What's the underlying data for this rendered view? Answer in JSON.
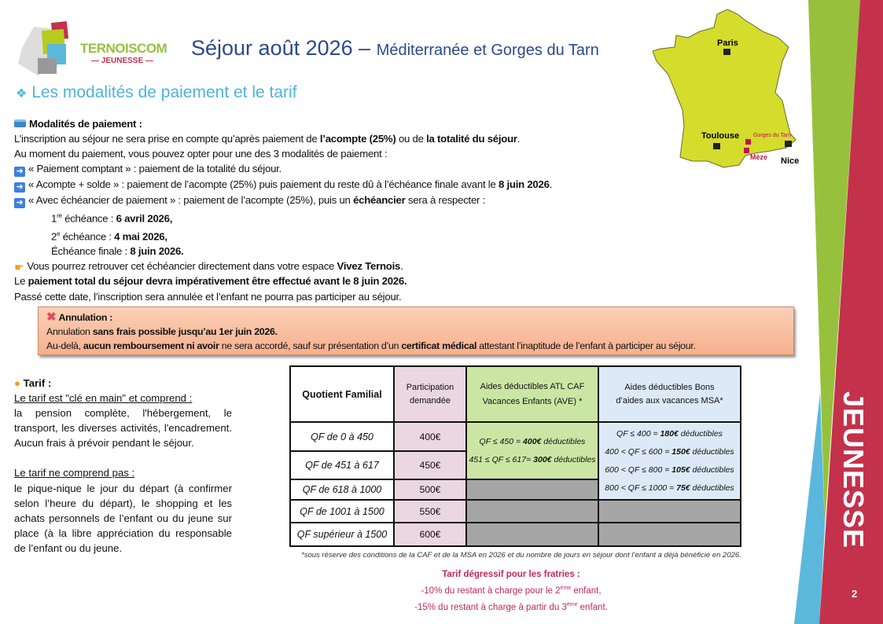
{
  "logo": {
    "brand": "TERNOISCOM",
    "sub": "— JEUNESSE —"
  },
  "header": {
    "title": "Séjour août 2026 –",
    "subtitle": "Méditerranée et Gorges du Tarn"
  },
  "section": {
    "icon": "diamond-bullet-icon",
    "title": "Les modalités de paiement et le tarif"
  },
  "map": {
    "cities": [
      "Paris",
      "Toulouse",
      "Nice"
    ],
    "destinations": [
      "Gorges du Tarn",
      "Mèze"
    ],
    "land_color": "#d4dc2c",
    "destination_color": "#c0124a"
  },
  "payment": {
    "heading": "Modalités de paiement :",
    "lines": [
      {
        "icon": "",
        "indent": false,
        "segs": [
          [
            "L’inscription au séjour ne sera prise en compte qu’après paiement de ",
            0
          ],
          [
            "l’acompte (25%)",
            1
          ],
          [
            " ou de ",
            0
          ],
          [
            "la totalité du séjour",
            1
          ],
          [
            ".",
            0
          ]
        ]
      },
      {
        "icon": "",
        "indent": false,
        "segs": [
          [
            "Au moment du paiement, vous pouvez opter pour une des 3 modalités de paiement :",
            0
          ]
        ]
      },
      {
        "icon": "arrow",
        "indent": false,
        "segs": [
          [
            "« Paiement comptant » : paiement de la totalité du séjour.",
            0
          ]
        ]
      },
      {
        "icon": "arrow",
        "indent": false,
        "segs": [
          [
            "« Acompte + solde » : paiement de l’acompte (25%) puis paiement du reste dû à l’échéance finale avant le ",
            0
          ],
          [
            "8 juin 2026",
            1
          ],
          [
            ".",
            0
          ]
        ]
      },
      {
        "icon": "arrow",
        "indent": false,
        "segs": [
          [
            "« Avec échéancier de paiement » : paiement de l’acompte (25%), puis un ",
            0
          ],
          [
            "échéancier",
            1
          ],
          [
            " sera à respecter :",
            0
          ]
        ]
      },
      {
        "icon": "",
        "indent": true,
        "segs": [
          [
            "1",
            0
          ],
          [
            "re",
            2
          ],
          [
            " échéance : ",
            0
          ],
          [
            "6 avril 2026,",
            1
          ]
        ]
      },
      {
        "icon": "",
        "indent": true,
        "segs": [
          [
            "2",
            0
          ],
          [
            "e",
            2
          ],
          [
            " échéance : ",
            0
          ],
          [
            "4 mai 2026,",
            1
          ]
        ]
      },
      {
        "icon": "",
        "indent": true,
        "segs": [
          [
            "Échéance finale : ",
            0
          ],
          [
            "8 juin 2026.",
            1
          ]
        ]
      },
      {
        "icon": "hand",
        "indent": false,
        "segs": [
          [
            "Vous pourrez retrouver cet échéancier directement dans votre espace ",
            0
          ],
          [
            "Vivez Ternois",
            1
          ],
          [
            ".",
            0
          ]
        ]
      },
      {
        "icon": "",
        "indent": false,
        "segs": [
          [
            "Le ",
            0
          ],
          [
            "paiement total du séjour devra impérativement être effectué avant le 8 juin 2026.",
            1
          ]
        ]
      },
      {
        "icon": "",
        "indent": false,
        "segs": [
          [
            "Passé cette date, l’inscription sera annulée et l’enfant ne pourra pas participer au séjour.",
            0
          ]
        ]
      }
    ]
  },
  "annulation": {
    "heading": "Annulation :",
    "lines": [
      {
        "segs": [
          [
            "Annulation ",
            0
          ],
          [
            "sans frais possible jusqu’au 1er juin 2026.",
            1
          ]
        ]
      },
      {
        "segs": [
          [
            "Au-delà, ",
            0
          ],
          [
            "aucun remboursement ni avoir",
            1
          ],
          [
            " ne sera accordé, sauf sur présentation d’un ",
            0
          ],
          [
            "certificat médical",
            1
          ],
          [
            " attestant l’inaptitude de l’enfant à participer au séjour.",
            0
          ]
        ]
      }
    ]
  },
  "tarif": {
    "heading": "Tarif :",
    "includes_title": "Le tarif est \"clé en main\" et comprend :",
    "includes_text": "la pension complète, l'hébergement, le transport, les diverses activités, l'encadrement. Aucun frais à prévoir pendant le séjour.",
    "excludes_title": "Le tarif ne comprend pas :",
    "excludes_text": "le pique-nique le jour du départ (à confirmer selon l’heure du départ), le shopping et les achats personnels de l’enfant ou du jeune sur place (à la libre appréciation du responsable de l’enfant ou du jeune."
  },
  "table": {
    "headers": [
      "Quotient Familial",
      "Participation demandée",
      "Aides déductibles ATL CAF Vacances Enfants (AVE) *",
      "Aides déductibles Bons d’aides aux vacances MSA*"
    ],
    "rows": [
      {
        "qf": "QF de 0 à 450",
        "price": "400€"
      },
      {
        "qf": "QF de 451 à 617",
        "price": "450€"
      },
      {
        "qf": "QF de 618 à 1000",
        "price": "500€"
      },
      {
        "qf": "QF de 1001 à 1500",
        "price": "550€"
      },
      {
        "qf": "QF supérieur à 1500",
        "price": "600€"
      }
    ],
    "atl": [
      [
        "QF ≤ 450 = ",
        "400€",
        " déductibles"
      ],
      [
        "451 ≤ QF ≤ 617= ",
        "300€",
        " déductibles"
      ]
    ],
    "msa": [
      [
        "QF ≤ 400 = ",
        "180€",
        " déductibles"
      ],
      [
        "400 < QF ≤ 600 = ",
        "150€",
        " déductibles"
      ],
      [
        "600 < QF ≤ 800 = ",
        "105€",
        " déductibles"
      ],
      [
        "800 < QF ≤ 1000 = ",
        "75€",
        " déductibles"
      ]
    ]
  },
  "footnote": "*sous réserve des conditions de la CAF et de la MSA en 2026 et du nombre de jours en séjour dont l’enfant a déjà bénéficié en 2026.",
  "fratries": {
    "title": "Tarif dégressif pour les fratries :",
    "line1_a": "-10% du restant à charge pour le 2",
    "line1_sup": "ème",
    "line1_b": " enfant,",
    "line2_a": "-15% du restant à charge à partir du 3",
    "line2_sup": "ème",
    "line2_b": " enfant."
  },
  "side": {
    "label": "JEUNESSE",
    "page": "2",
    "colors": {
      "green": "#97c13c",
      "red": "#c4314b",
      "blue": "#5bb8dc"
    }
  }
}
